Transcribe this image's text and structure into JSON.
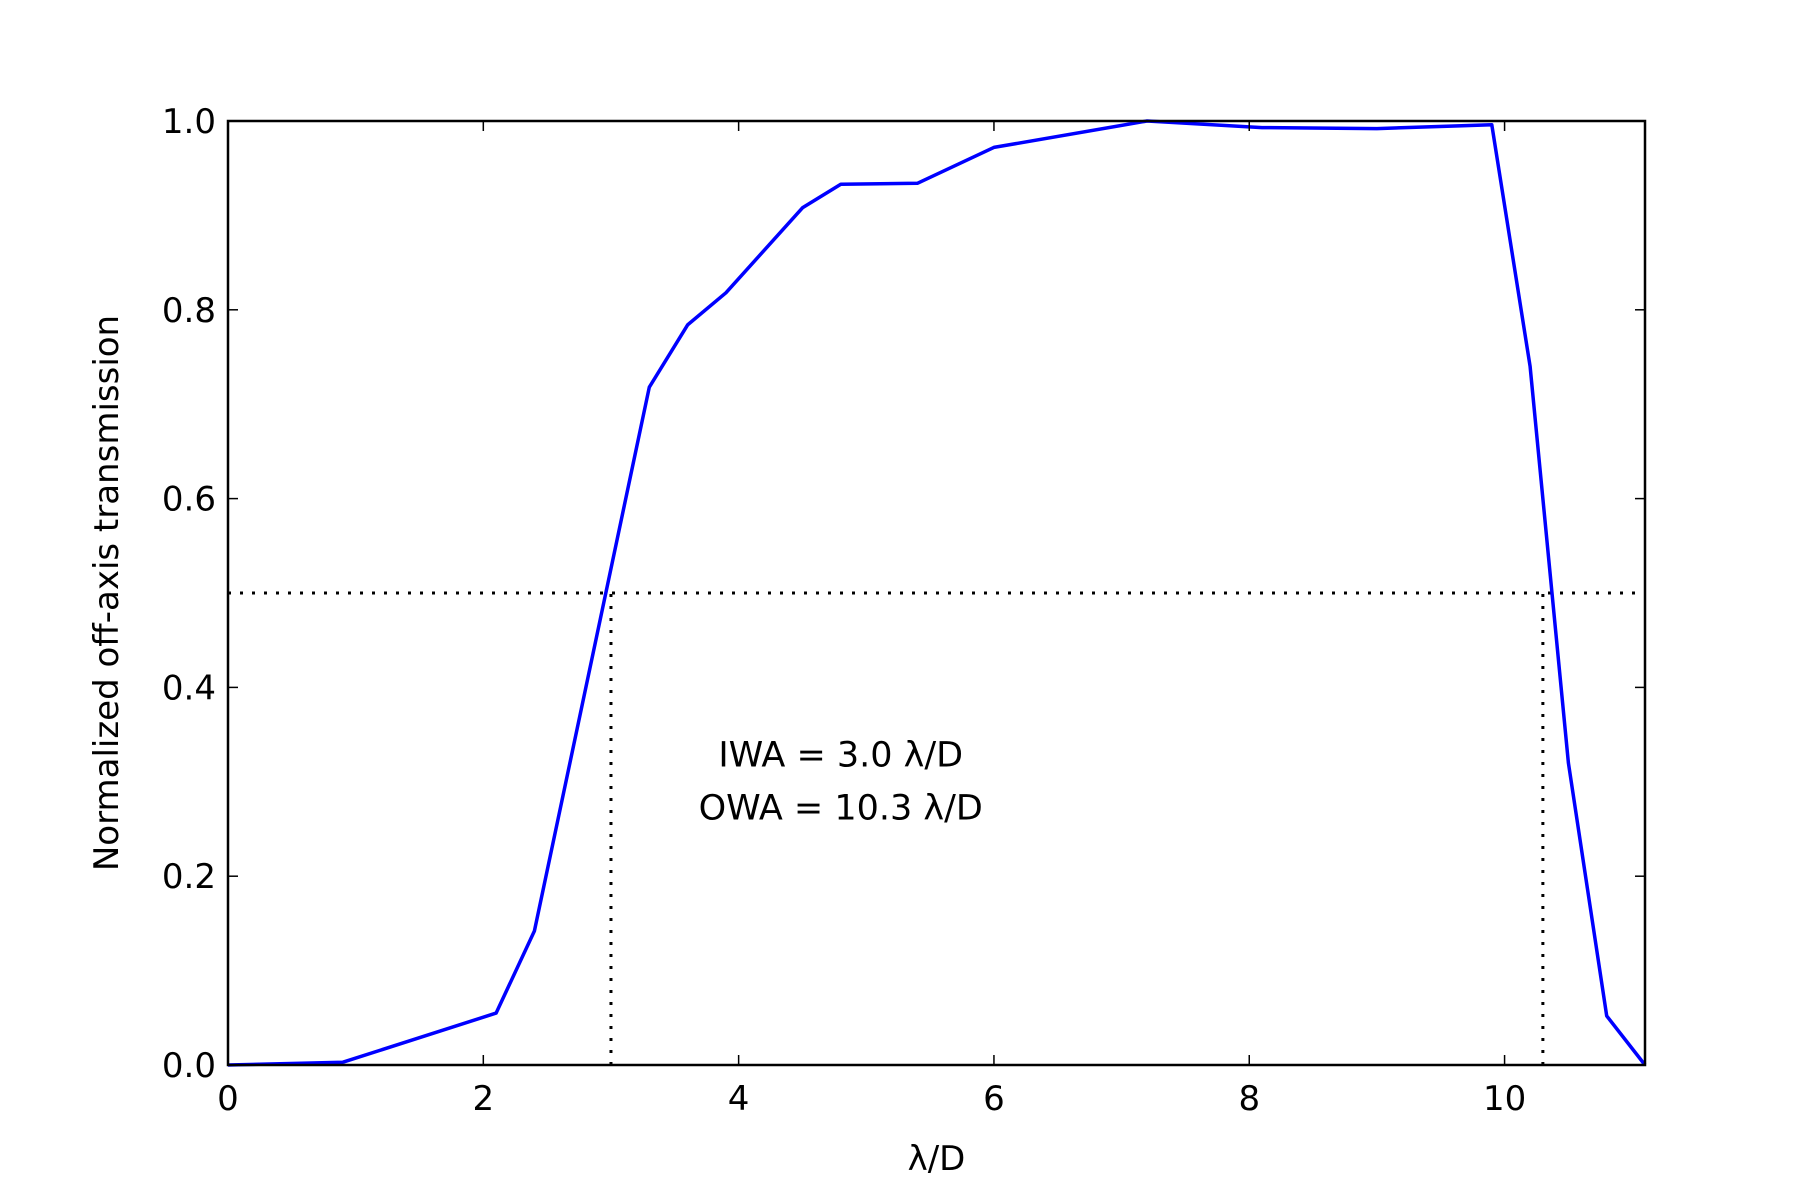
{
  "chart_data": {
    "type": "line",
    "title": "",
    "xlabel": "λ/D",
    "ylabel": "Normalized off-axis transmission",
    "xlim": [
      0,
      11.1
    ],
    "ylim": [
      0,
      1.0
    ],
    "xticks": [
      0,
      2,
      4,
      6,
      8,
      10
    ],
    "yticks": [
      0.0,
      0.2,
      0.4,
      0.6,
      0.8,
      1.0
    ],
    "xtick_labels": [
      "0",
      "2",
      "4",
      "6",
      "8",
      "10"
    ],
    "ytick_labels": [
      "0.0",
      "0.2",
      "0.4",
      "0.6",
      "0.8",
      "1.0"
    ],
    "grid": false,
    "legend": "none",
    "series": [
      {
        "color": "#0000ff",
        "x": [
          0,
          0.9,
          2.1,
          2.4,
          3.3,
          3.6,
          3.9,
          4.5,
          4.8,
          5.4,
          6.0,
          7.2,
          8.1,
          9.0,
          9.9,
          10.2,
          10.5,
          10.8,
          11.1
        ],
        "y": [
          0.0,
          0.003,
          0.055,
          0.142,
          0.718,
          0.784,
          0.818,
          0.908,
          0.933,
          0.934,
          0.972,
          1.0,
          0.993,
          0.992,
          0.996,
          0.74,
          0.32,
          0.052,
          0.0
        ]
      }
    ],
    "reference_lines": [
      {
        "type": "horizontal",
        "y": 0.5,
        "style": "dotted"
      },
      {
        "type": "vertical",
        "x": 3.0,
        "y_to": 0.5,
        "style": "dotted"
      },
      {
        "type": "vertical",
        "x": 10.3,
        "y_to": 0.5,
        "style": "dotted"
      }
    ],
    "annotations": [
      {
        "text": "IWA = 3.0 λ/D",
        "x": 4.8,
        "y": 0.316
      },
      {
        "text": "OWA = 10.3 λ/D",
        "x": 4.8,
        "y": 0.26
      }
    ]
  }
}
